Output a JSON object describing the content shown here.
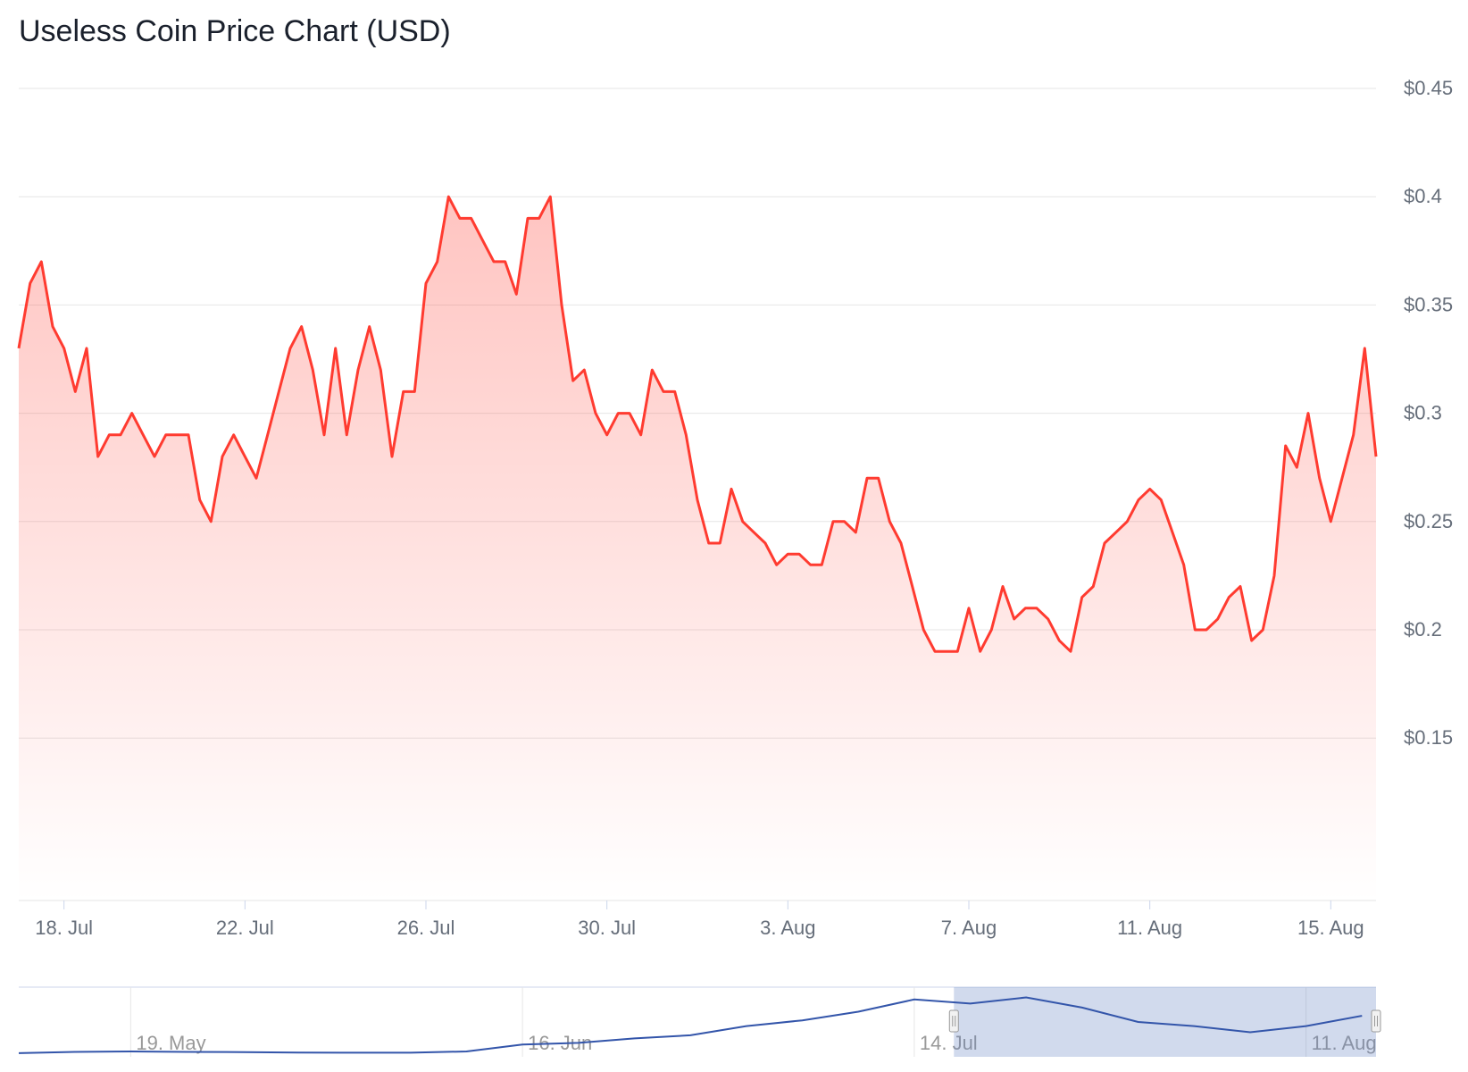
{
  "chart_data": [
    {
      "type": "line",
      "title": "Useless Coin Price Chart (USD)",
      "categories": [
        null,
        null,
        null,
        null,
        "18. Jul",
        null,
        null,
        null,
        null,
        null,
        null,
        null,
        null,
        null,
        null,
        null,
        null,
        null,
        null,
        null,
        "22. Jul",
        null,
        null,
        null,
        null,
        null,
        null,
        null,
        null,
        null,
        null,
        null,
        null,
        null,
        null,
        null,
        "26. Jul",
        null,
        null,
        null,
        null,
        null,
        null,
        null,
        null,
        null,
        null,
        null,
        null,
        null,
        null,
        null,
        "30. Jul",
        null,
        null,
        null,
        null,
        null,
        null,
        null,
        null,
        null,
        null,
        null,
        null,
        null,
        null,
        null,
        "3. Aug",
        null,
        null,
        null,
        null,
        null,
        null,
        null,
        null,
        null,
        null,
        null,
        null,
        null,
        null,
        null,
        "7. Aug",
        null,
        null,
        null,
        null,
        null,
        null,
        null,
        null,
        null,
        null,
        null,
        null,
        null,
        null,
        null,
        "11. Aug",
        null,
        null,
        null,
        null,
        null,
        null,
        null,
        null,
        null,
        null,
        null,
        null,
        null,
        null,
        null,
        "15. Aug",
        null,
        null,
        null,
        null
      ],
      "series": [
        {
          "color": "#ff3b30",
          "values": [
            0.33,
            0.36,
            0.37,
            0.34,
            0.33,
            0.31,
            0.33,
            0.28,
            0.29,
            0.29,
            0.3,
            0.29,
            0.28,
            0.29,
            0.29,
            0.29,
            0.26,
            0.25,
            0.28,
            0.29,
            0.28,
            0.27,
            0.29,
            0.31,
            0.33,
            0.34,
            0.32,
            0.29,
            0.33,
            0.29,
            0.32,
            0.34,
            0.32,
            0.28,
            0.31,
            0.31,
            0.36,
            0.37,
            0.4,
            0.39,
            0.39,
            0.38,
            0.37,
            0.37,
            0.355,
            0.39,
            0.39,
            0.4,
            0.35,
            0.315,
            0.32,
            0.3,
            0.29,
            0.3,
            0.3,
            0.29,
            0.32,
            0.31,
            0.31,
            0.29,
            0.26,
            0.24,
            0.24,
            0.265,
            0.25,
            0.245,
            0.24,
            0.23,
            0.235,
            0.235,
            0.23,
            0.23,
            0.25,
            0.25,
            0.245,
            0.27,
            0.27,
            0.25,
            0.24,
            0.22,
            0.2,
            0.19,
            0.19,
            0.19,
            0.21,
            0.19,
            0.2,
            0.22,
            0.205,
            0.21,
            0.21,
            0.205,
            0.195,
            0.19,
            0.215,
            0.22,
            0.24,
            0.245,
            0.25,
            0.26,
            0.265,
            0.26,
            0.245,
            0.23,
            0.2,
            0.2,
            0.205,
            0.215,
            0.22,
            0.195,
            0.2,
            0.225,
            0.285,
            0.275,
            0.3,
            0.27,
            0.25,
            0.27,
            0.29,
            0.33,
            0.28
          ]
        }
      ],
      "ylim": [
        0.075,
        0.45
      ],
      "yticks": [
        {
          "value": 0.15,
          "label": "$0.15"
        },
        {
          "value": 0.2,
          "label": "$0.2"
        },
        {
          "value": 0.25,
          "label": "$0.25"
        },
        {
          "value": 0.3,
          "label": "$0.3"
        },
        {
          "value": 0.35,
          "label": "$0.35"
        },
        {
          "value": 0.4,
          "label": "$0.4"
        },
        {
          "value": 0.45,
          "label": "$0.45"
        }
      ],
      "grid": true
    },
    {
      "type": "navigator",
      "categories": [
        null,
        null,
        "19. May",
        null,
        null,
        null,
        null,
        null,
        null,
        "16. Jun",
        null,
        null,
        null,
        null,
        null,
        null,
        "14. Jul",
        null,
        null,
        null,
        null,
        null,
        null,
        "11. Aug",
        null
      ],
      "series": [
        {
          "color": "#3355aa",
          "values": [
            0.098,
            0.104,
            0.106,
            0.104,
            0.103,
            0.101,
            0.1,
            0.1,
            0.106,
            0.14,
            0.148,
            0.17,
            0.185,
            0.23,
            0.258,
            0.3,
            0.36,
            0.34,
            0.37,
            0.32,
            0.25,
            0.23,
            0.2,
            0.23,
            0.28
          ]
        }
      ],
      "ylim": [
        0.08,
        0.42
      ]
    }
  ]
}
